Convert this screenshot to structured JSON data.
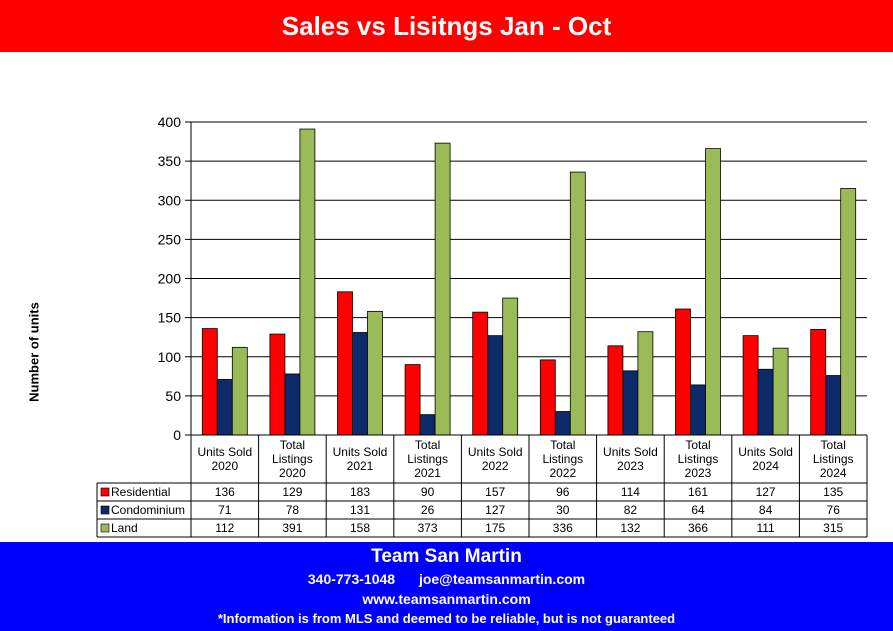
{
  "header": {
    "title": "Sales vs Lisitngs Jan - Oct"
  },
  "footer": {
    "brand": "Team San Martin",
    "phone": "340-773-1048",
    "email": "joe@teamsanmartin.com",
    "website": "www.teamsanmartin.com",
    "disclaimer": "*Information is from MLS and deemed to be reliable, but is not guaranteed"
  },
  "colors": {
    "header_bg": "#ff0000",
    "footer_bg": "#0000ff",
    "residential": "#ff0000",
    "condominium": "#0d2a6b",
    "land": "#9bbb59"
  },
  "chart_data": {
    "type": "bar",
    "title": "Sales vs Lisitngs Jan - Oct",
    "ylabel": "Number of units",
    "xlabel": "",
    "ylim": [
      0,
      400
    ],
    "yticks": [
      0,
      50,
      100,
      150,
      200,
      250,
      300,
      350,
      400
    ],
    "grid": true,
    "legend": "data-table",
    "categories": [
      [
        "Units Sold",
        "2020"
      ],
      [
        "Total",
        "Listings",
        "2020"
      ],
      [
        "Units Sold",
        "2021"
      ],
      [
        "Total",
        "Listings",
        "2021"
      ],
      [
        "Units Sold",
        "2022"
      ],
      [
        "Total",
        "Listings",
        "2022"
      ],
      [
        "Units Sold",
        "2023"
      ],
      [
        "Total",
        "Listings",
        "2023"
      ],
      [
        "Units Sold",
        "2024"
      ],
      [
        "Total",
        "Listings",
        "2024"
      ]
    ],
    "series": [
      {
        "name": "Residential",
        "color": "#ff0000",
        "values": [
          136,
          129,
          183,
          90,
          157,
          96,
          114,
          161,
          127,
          135
        ]
      },
      {
        "name": "Condominium",
        "color": "#0d2a6b",
        "values": [
          71,
          78,
          131,
          26,
          127,
          30,
          82,
          64,
          84,
          76
        ]
      },
      {
        "name": "Land",
        "color": "#9bbb59",
        "values": [
          112,
          391,
          158,
          373,
          175,
          336,
          132,
          366,
          111,
          315
        ]
      }
    ]
  }
}
